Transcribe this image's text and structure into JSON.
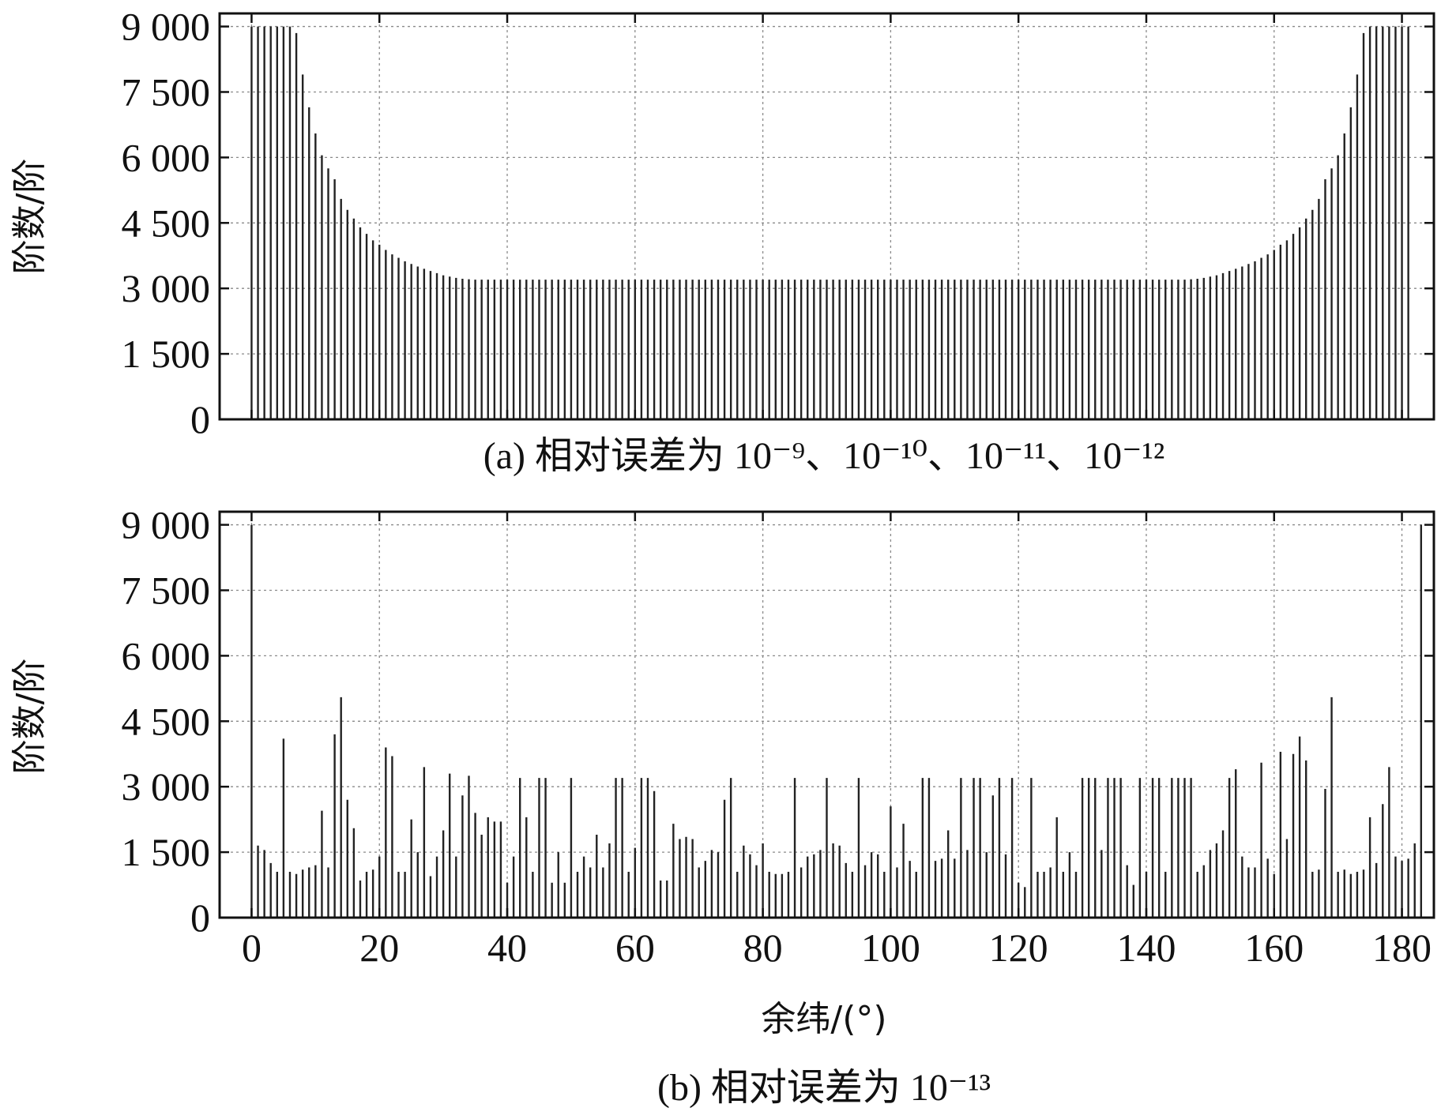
{
  "chart_data": [
    {
      "id": "a",
      "type": "bar",
      "style": "stem",
      "caption": "(a) 相对误差为 10⁻⁹、10⁻¹⁰、10⁻¹¹、10⁻¹²",
      "ylabel": "阶数/阶",
      "xlabel": "",
      "xlim": [
        -5,
        185
      ],
      "ylim": [
        0,
        9300
      ],
      "yticks": [
        0,
        1500,
        3000,
        4500,
        6000,
        7500,
        9000
      ],
      "ytick_labels": [
        "0",
        "1 500",
        "3 000",
        "4 500",
        "6 000",
        "7 500",
        "9 000"
      ],
      "xticks": [
        0,
        20,
        40,
        60,
        80,
        100,
        120,
        140,
        160,
        180
      ],
      "show_xtick_labels": false,
      "grid": true,
      "x_start": 0,
      "x_step": 1,
      "values": [
        9000,
        9000,
        9000,
        9000,
        9000,
        9000,
        9000,
        8850,
        7900,
        7150,
        6550,
        6050,
        5750,
        5500,
        5050,
        4800,
        4600,
        4400,
        4250,
        4100,
        4000,
        3880,
        3780,
        3700,
        3620,
        3560,
        3500,
        3450,
        3400,
        3350,
        3300,
        3270,
        3240,
        3220,
        3210,
        3200,
        3200,
        3200,
        3200,
        3200,
        3200,
        3200,
        3200,
        3200,
        3200,
        3200,
        3200,
        3200,
        3200,
        3200,
        3200,
        3200,
        3200,
        3200,
        3200,
        3200,
        3200,
        3200,
        3200,
        3200,
        3200,
        3200,
        3200,
        3200,
        3200,
        3200,
        3200,
        3200,
        3200,
        3200,
        3200,
        3200,
        3200,
        3200,
        3200,
        3200,
        3200,
        3200,
        3200,
        3200,
        3200,
        3200,
        3200,
        3200,
        3200,
        3200,
        3200,
        3200,
        3200,
        3200,
        3200,
        3200,
        3200,
        3200,
        3200,
        3200,
        3200,
        3200,
        3200,
        3200,
        3200,
        3200,
        3200,
        3200,
        3200,
        3200,
        3200,
        3200,
        3200,
        3200,
        3200,
        3200,
        3200,
        3200,
        3200,
        3200,
        3200,
        3200,
        3200,
        3200,
        3200,
        3200,
        3200,
        3200,
        3200,
        3200,
        3200,
        3200,
        3200,
        3200,
        3200,
        3200,
        3200,
        3200,
        3200,
        3200,
        3200,
        3200,
        3200,
        3200,
        3200,
        3200,
        3200,
        3200,
        3200,
        3200,
        3200,
        3210,
        3220,
        3240,
        3270,
        3300,
        3350,
        3400,
        3450,
        3500,
        3560,
        3620,
        3700,
        3780,
        3880,
        4000,
        4100,
        4250,
        4400,
        4600,
        4800,
        5050,
        5500,
        5750,
        6050,
        6550,
        7150,
        7900,
        8850,
        9000,
        9000,
        9000,
        9000,
        9000,
        9000,
        9000
      ]
    },
    {
      "id": "b",
      "type": "bar",
      "style": "stem",
      "caption": "(b) 相对误差为 10⁻¹³",
      "ylabel": "阶数/阶",
      "xlabel": "余纬/(°)",
      "xlim": [
        -5,
        185
      ],
      "ylim": [
        0,
        9300
      ],
      "yticks": [
        0,
        1500,
        3000,
        4500,
        6000,
        7500,
        9000
      ],
      "ytick_labels": [
        "0",
        "1 500",
        "3 000",
        "4 500",
        "6 000",
        "7 500",
        "9 000"
      ],
      "xticks": [
        0,
        20,
        40,
        60,
        80,
        100,
        120,
        140,
        160,
        180
      ],
      "xtick_labels": [
        "0",
        "20",
        "40",
        "60",
        "80",
        "100",
        "120",
        "140",
        "160",
        "180"
      ],
      "show_xtick_labels": true,
      "grid": true,
      "x_start": 0,
      "x_step": 1,
      "values": [
        9000,
        1650,
        1550,
        1250,
        1050,
        4100,
        1050,
        1000,
        1100,
        1150,
        1200,
        2450,
        1150,
        4200,
        5050,
        2700,
        2050,
        850,
        1050,
        1100,
        1400,
        3900,
        3700,
        1050,
        1050,
        2250,
        1500,
        3450,
        950,
        1400,
        2000,
        3300,
        1400,
        2800,
        3250,
        2400,
        1900,
        2300,
        2200,
        2200,
        800,
        1400,
        3200,
        2300,
        1050,
        3200,
        3200,
        800,
        1500,
        800,
        3200,
        1050,
        1400,
        1150,
        1900,
        1150,
        1700,
        3200,
        3200,
        1050,
        1600,
        3200,
        3200,
        2900,
        850,
        850,
        2150,
        1800,
        1850,
        1800,
        1150,
        1300,
        1550,
        1500,
        2700,
        3200,
        1050,
        1650,
        1450,
        1200,
        1700,
        1050,
        1000,
        1000,
        1050,
        3200,
        1150,
        1400,
        1450,
        1550,
        3200,
        1700,
        1650,
        1250,
        1050,
        3200,
        1200,
        1500,
        1450,
        1050,
        2550,
        1150,
        2150,
        1300,
        1050,
        3200,
        3200,
        1300,
        1350,
        2000,
        1350,
        3200,
        1550,
        3200,
        3200,
        1500,
        2800,
        3200,
        1450,
        3200,
        800,
        700,
        3200,
        1050,
        1050,
        1150,
        2300,
        1050,
        1500,
        1050,
        3200,
        3200,
        3200,
        1550,
        3200,
        3200,
        3200,
        1200,
        750,
        3200,
        1050,
        3200,
        3200,
        1050,
        3200,
        3200,
        3200,
        3200,
        1050,
        1200,
        1550,
        1700,
        2000,
        3200,
        3400,
        1400,
        1150,
        1150,
        3550,
        1350,
        1000,
        3800,
        1800,
        3750,
        4150,
        3600,
        1050,
        1100,
        2950,
        5050,
        1050,
        1100,
        1000,
        1050,
        1100,
        2300,
        1250,
        2600,
        3450,
        1400,
        1300,
        1350,
        1700,
        9000
      ]
    }
  ]
}
